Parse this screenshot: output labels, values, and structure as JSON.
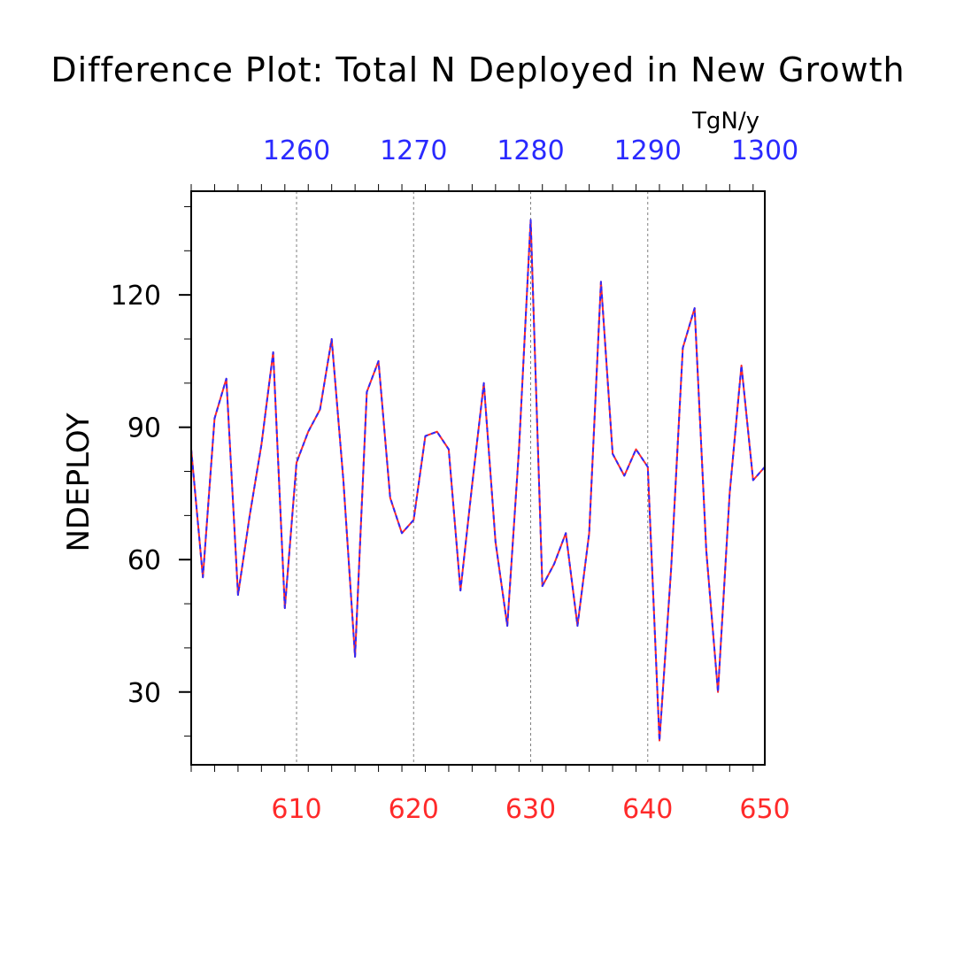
{
  "chart_data": {
    "type": "line",
    "title": "Difference Plot: Total N Deployed in New Growth",
    "units": "TgN/y",
    "ylabel": "NDEPLOY",
    "xlabel": "",
    "bottom_axis": {
      "ticks": [
        610,
        620,
        630,
        640,
        650
      ],
      "tick_labels": [
        "610",
        "620",
        "630",
        "640",
        "650"
      ],
      "range": [
        601,
        650
      ],
      "color": "#ff2a2a"
    },
    "top_axis": {
      "ticks": [
        1260,
        1270,
        1280,
        1290,
        1300
      ],
      "tick_labels": [
        "1260",
        "1270",
        "1280",
        "1290",
        "1300"
      ],
      "range": [
        1251,
        1300
      ],
      "color": "#2a2aff"
    },
    "y_axis": {
      "ticks": [
        30,
        60,
        90,
        120
      ],
      "tick_labels": [
        "30",
        "60",
        "90",
        "120"
      ],
      "range": [
        13.5,
        143.5
      ]
    },
    "grid": "vertical dotted at major x ticks",
    "series": [
      {
        "color": "#ff2a2a",
        "style": "solid",
        "x": [
          601,
          602,
          603,
          604,
          605,
          606,
          607,
          608,
          609,
          610,
          611,
          612,
          613,
          614,
          615,
          616,
          617,
          618,
          619,
          620,
          621,
          622,
          623,
          624,
          625,
          626,
          627,
          628,
          629,
          630,
          631,
          632,
          633,
          634,
          635,
          636,
          637,
          638,
          639,
          640,
          641,
          642,
          643,
          644,
          645,
          646,
          647,
          648,
          649,
          650
        ],
        "values": [
          85,
          56,
          92,
          101,
          52,
          70,
          86,
          107,
          49,
          82,
          89,
          94,
          110,
          78,
          38,
          98,
          105,
          74,
          66,
          69,
          88,
          89,
          85,
          53,
          77,
          100,
          64,
          45,
          85,
          137,
          54,
          59,
          66,
          45,
          66,
          123,
          84,
          79,
          85,
          81,
          19,
          58,
          108,
          117,
          62,
          30,
          75,
          104,
          78,
          81
        ]
      },
      {
        "color": "#2a2aff",
        "style": "dashed",
        "x": [
          1251,
          1252,
          1253,
          1254,
          1255,
          1256,
          1257,
          1258,
          1259,
          1260,
          1261,
          1262,
          1263,
          1264,
          1265,
          1266,
          1267,
          1268,
          1269,
          1270,
          1271,
          1272,
          1273,
          1274,
          1275,
          1276,
          1277,
          1278,
          1279,
          1280,
          1281,
          1282,
          1283,
          1284,
          1285,
          1286,
          1287,
          1288,
          1289,
          1290,
          1291,
          1292,
          1293,
          1294,
          1295,
          1296,
          1297,
          1298,
          1299,
          1300
        ],
        "values": [
          85,
          56,
          92,
          101,
          52,
          70,
          86,
          107,
          49,
          82,
          89,
          94,
          110,
          78,
          38,
          98,
          105,
          74,
          66,
          69,
          88,
          89,
          85,
          53,
          77,
          100,
          64,
          45,
          85,
          137,
          54,
          59,
          66,
          45,
          66,
          123,
          84,
          79,
          85,
          81,
          19,
          58,
          108,
          117,
          62,
          30,
          75,
          104,
          78,
          81
        ]
      }
    ]
  }
}
